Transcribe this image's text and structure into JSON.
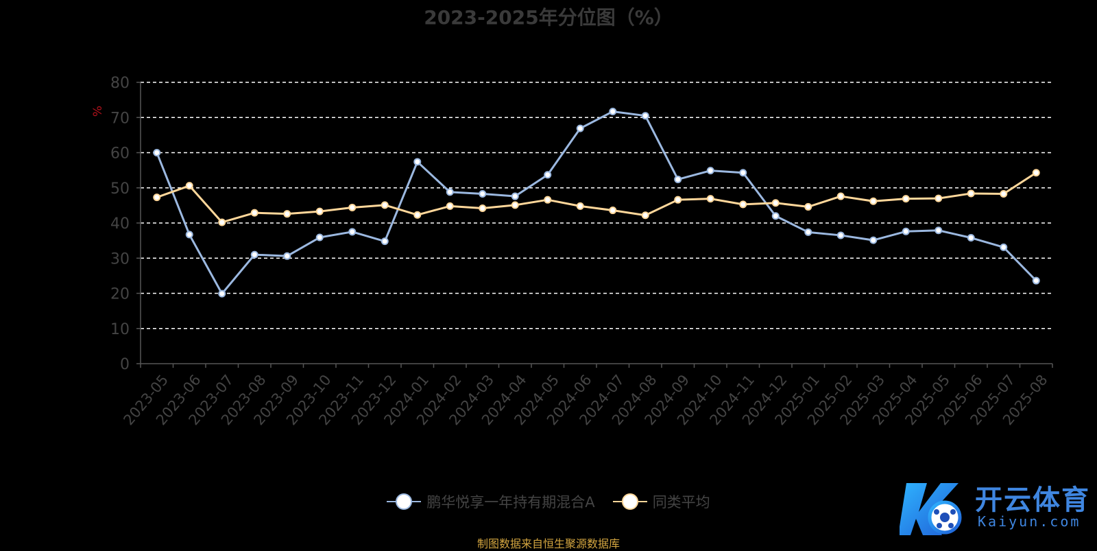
{
  "title": "2023-2025年分位图（%）",
  "source_note": "制图数据来自恒生聚源数据库",
  "brand": {
    "name": "开云体育",
    "url": "Kaiyun.com"
  },
  "colors": {
    "background": "#000000",
    "fund": "#9bb8e0",
    "average": "#ffd79a",
    "grid": "#ffffff",
    "axis_label": "#444444",
    "unit": "#b3121c"
  },
  "chart_data": {
    "type": "line",
    "title": "2023-2025年分位图（%）",
    "ylabel": "%",
    "ylim": [
      0,
      80
    ],
    "yticks": [
      0,
      10,
      20,
      30,
      40,
      50,
      60,
      70,
      80
    ],
    "grid": true,
    "legend_position": "bottom",
    "categories": [
      "2023-05",
      "2023-06",
      "2023-07",
      "2023-08",
      "2023-09",
      "2023-10",
      "2023-11",
      "2023-12",
      "2024-01",
      "2024-02",
      "2024-03",
      "2024-04",
      "2024-05",
      "2024-06",
      "2024-07",
      "2024-08",
      "2024-09",
      "2024-10",
      "2024-11",
      "2024-12",
      "2025-01",
      "2025-02",
      "2025-03",
      "2025-04",
      "2025-05",
      "2025-06",
      "2025-07",
      "2025-08"
    ],
    "series": [
      {
        "name": "鹏华悦享一年持有期混合A",
        "color": "#9bb8e0",
        "values": [
          60,
          36.7,
          19.9,
          31.0,
          30.6,
          35.9,
          37.5,
          34.8,
          57.4,
          48.8,
          48.3,
          47.6,
          53.7,
          66.9,
          71.7,
          70.5,
          52.4,
          54.9,
          54.3,
          42.0,
          37.4,
          36.5,
          35.1,
          37.6,
          37.9,
          35.8,
          33.1,
          23.6
        ]
      },
      {
        "name": "同类平均",
        "color": "#ffd79a",
        "values": [
          47.3,
          50.6,
          40.2,
          42.9,
          42.6,
          43.3,
          44.4,
          45.1,
          42.3,
          44.8,
          44.2,
          45.1,
          46.6,
          44.8,
          43.6,
          42.2,
          46.6,
          46.9,
          45.3,
          45.7,
          44.6,
          47.6,
          46.2,
          46.9,
          47.0,
          48.4,
          48.3,
          54.3
        ]
      }
    ]
  }
}
